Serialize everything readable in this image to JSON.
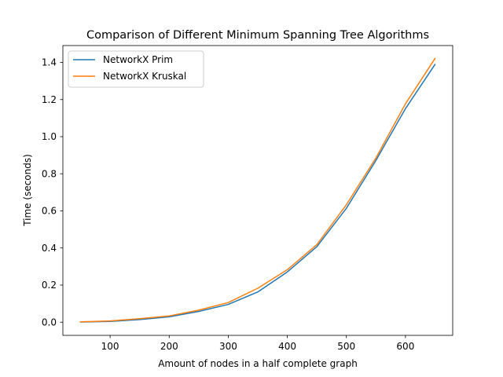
{
  "chart_data": {
    "type": "line",
    "title": "Comparison of Different Minimum Spanning Tree Algorithms",
    "xlabel": "Amount of nodes in a half complete graph",
    "ylabel": "Time (seconds)",
    "xlim": [
      20,
      680
    ],
    "ylim": [
      -0.071,
      1.491
    ],
    "xticks": [
      100,
      200,
      300,
      400,
      500,
      600
    ],
    "yticks": [
      0.0,
      0.2,
      0.4,
      0.6,
      0.8,
      1.0,
      1.2,
      1.4
    ],
    "xtick_labels": [
      "100",
      "200",
      "300",
      "400",
      "500",
      "600"
    ],
    "ytick_labels": [
      "0.0",
      "0.2",
      "0.4",
      "0.6",
      "0.8",
      "1.0",
      "1.2",
      "1.4"
    ],
    "grid": false,
    "legend_position": "top-left",
    "x": [
      50,
      100,
      150,
      200,
      250,
      300,
      350,
      400,
      450,
      500,
      550,
      600,
      650
    ],
    "series": [
      {
        "name": "NetworkX Prim",
        "color": "#1f77b4",
        "values": [
          0.001,
          0.004,
          0.014,
          0.029,
          0.058,
          0.096,
          0.163,
          0.271,
          0.407,
          0.614,
          0.872,
          1.151,
          1.389
        ]
      },
      {
        "name": "NetworkX Kruskal",
        "color": "#ff7f0e",
        "values": [
          0.002,
          0.007,
          0.019,
          0.034,
          0.065,
          0.106,
          0.183,
          0.283,
          0.418,
          0.633,
          0.885,
          1.177,
          1.421
        ]
      }
    ]
  }
}
